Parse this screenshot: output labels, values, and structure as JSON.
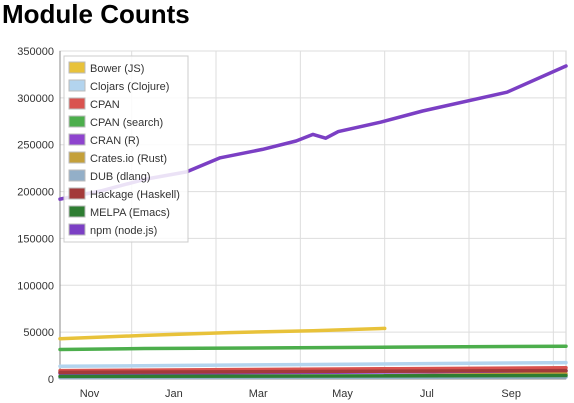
{
  "page": {
    "title": "Module Counts"
  },
  "chart_data": {
    "type": "line",
    "title": "Module Counts",
    "xlabel": "",
    "ylabel": "",
    "x_tick_labels": [
      "Nov",
      "Jan",
      "Mar",
      "May",
      "Jul",
      "Sep"
    ],
    "y_tick_labels": [
      "0",
      "50000",
      "100000",
      "150000",
      "200000",
      "250000",
      "300000",
      "350000"
    ],
    "ylim": [
      0,
      350000
    ],
    "y_ticks": [
      0,
      50000,
      100000,
      150000,
      200000,
      250000,
      300000,
      350000
    ],
    "grid": true,
    "legend_position": "top-left",
    "series": [
      {
        "name": "Bower (JS)",
        "color": "#e8c23a",
        "points": [
          [
            0,
            43000
          ],
          [
            2,
            46500
          ],
          [
            4,
            49500
          ],
          [
            6,
            51500
          ],
          [
            7.7,
            54000
          ]
        ]
      },
      {
        "name": "Clojars (Clojure)",
        "color": "#b3d4ee",
        "points": [
          [
            0,
            13500
          ],
          [
            3,
            14500
          ],
          [
            6,
            15500
          ],
          [
            9,
            16500
          ],
          [
            12,
            17500
          ]
        ]
      },
      {
        "name": "CPAN",
        "color": "#d9534f",
        "points": [
          [
            0,
            9000
          ],
          [
            4,
            10000
          ],
          [
            8,
            11000
          ],
          [
            12,
            12000
          ]
        ]
      },
      {
        "name": "CPAN (search)",
        "color": "#4cae4c",
        "points": [
          [
            0,
            31500
          ],
          [
            2,
            32500
          ],
          [
            4,
            33000
          ],
          [
            8,
            34000
          ],
          [
            12,
            35000
          ]
        ]
      },
      {
        "name": "CRAN (R)",
        "color": "#8e44ce",
        "points": [
          [
            0,
            6000
          ],
          [
            6,
            7000
          ],
          [
            12,
            8500
          ]
        ]
      },
      {
        "name": "Crates.io (Rust)",
        "color": "#c4a03a",
        "points": [
          [
            7.7,
            3500
          ],
          [
            10,
            4500
          ],
          [
            12,
            5500
          ]
        ]
      },
      {
        "name": "DUB (dlang)",
        "color": "#93afc8",
        "points": [
          [
            0,
            1500
          ],
          [
            6,
            1800
          ],
          [
            12,
            2100
          ]
        ]
      },
      {
        "name": "Hackage (Haskell)",
        "color": "#a33a3a",
        "points": [
          [
            0,
            7000
          ],
          [
            6,
            8000
          ],
          [
            12,
            9000
          ]
        ]
      },
      {
        "name": "MELPA (Emacs)",
        "color": "#2e7d32",
        "points": [
          [
            0,
            2800
          ],
          [
            6,
            3200
          ],
          [
            12,
            3700
          ]
        ]
      },
      {
        "name": "npm (node.js)",
        "color": "#7b3fc4",
        "points": [
          [
            0,
            192000
          ],
          [
            1,
            201000
          ],
          [
            2,
            213000
          ],
          [
            3,
            221000
          ],
          [
            3.8,
            236000
          ],
          [
            4.8,
            245000
          ],
          [
            5.6,
            254000
          ],
          [
            6.0,
            261000
          ],
          [
            6.3,
            257000
          ],
          [
            6.6,
            264000
          ],
          [
            7.6,
            274000
          ],
          [
            8.6,
            286000
          ],
          [
            10.6,
            306000
          ],
          [
            12,
            334000
          ]
        ]
      }
    ]
  }
}
